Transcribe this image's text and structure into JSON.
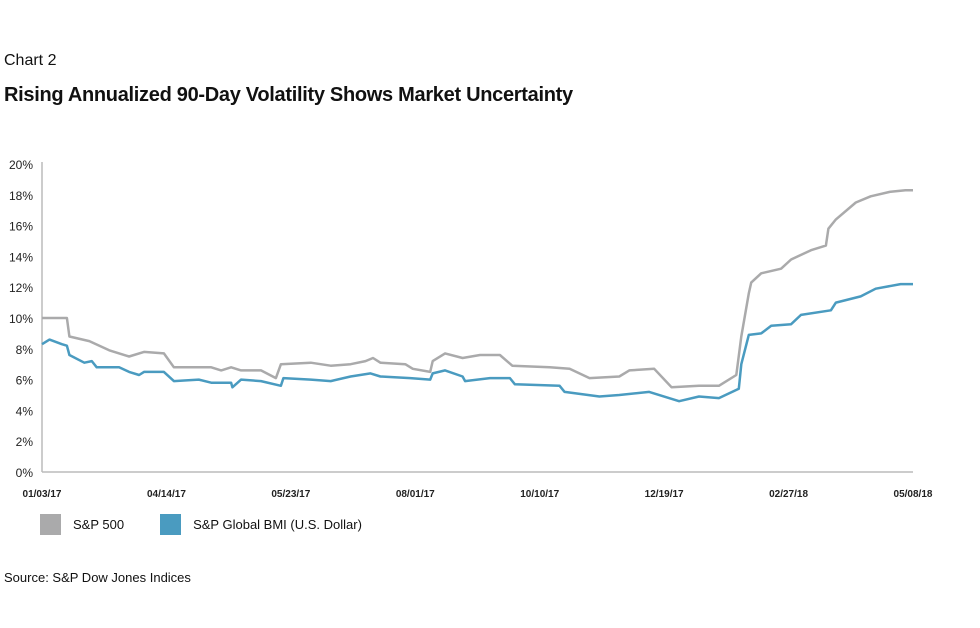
{
  "header": {
    "chart_number": "Chart 2",
    "title": "Rising Annualized 90-Day Volatility Shows Market Uncertainty"
  },
  "source": "Source: S&P Dow Jones Indices",
  "chart_data": {
    "type": "line",
    "title": "Rising Annualized 90-Day Volatility Shows Market Uncertainty",
    "xlabel": "",
    "ylabel": "",
    "ylim": [
      0,
      20
    ],
    "yticks": [
      0,
      2,
      4,
      6,
      8,
      10,
      12,
      14,
      16,
      18,
      20
    ],
    "ytick_labels": [
      "0%",
      "2%",
      "4%",
      "6%",
      "8%",
      "10%",
      "12%",
      "14%",
      "16%",
      "18%",
      "20%"
    ],
    "xlim": [
      0,
      350
    ],
    "x_unit": "trading day index from 01/03/17",
    "xticks": [
      0,
      50,
      100,
      150,
      200,
      250,
      300,
      350
    ],
    "xtick_labels": [
      "01/03/17",
      "04/14/17",
      "05/23/17",
      "08/01/17",
      "10/10/17",
      "12/19/17",
      "02/27/18",
      "05/08/18"
    ],
    "grid": false,
    "legend_placement": "bottom-left",
    "series": [
      {
        "name": "S&P 500",
        "color": "#aaaaab",
        "points": [
          [
            0,
            10.0
          ],
          [
            10,
            10.0
          ],
          [
            11,
            8.8
          ],
          [
            19,
            8.5
          ],
          [
            27,
            7.9
          ],
          [
            35,
            7.5
          ],
          [
            41,
            7.8
          ],
          [
            49,
            7.7
          ],
          [
            53,
            6.8
          ],
          [
            68,
            6.8
          ],
          [
            72,
            6.6
          ],
          [
            76,
            6.8
          ],
          [
            80,
            6.6
          ],
          [
            88,
            6.6
          ],
          [
            94,
            6.1
          ],
          [
            96,
            7.0
          ],
          [
            108,
            7.1
          ],
          [
            116,
            6.9
          ],
          [
            124,
            7.0
          ],
          [
            130,
            7.2
          ],
          [
            133,
            7.4
          ],
          [
            136,
            7.1
          ],
          [
            146,
            7.0
          ],
          [
            149,
            6.7
          ],
          [
            156,
            6.5
          ],
          [
            157,
            7.2
          ],
          [
            162,
            7.7
          ],
          [
            169,
            7.4
          ],
          [
            176,
            7.6
          ],
          [
            184,
            7.6
          ],
          [
            189,
            6.9
          ],
          [
            204,
            6.8
          ],
          [
            212,
            6.7
          ],
          [
            220,
            6.1
          ],
          [
            232,
            6.2
          ],
          [
            236,
            6.6
          ],
          [
            246,
            6.7
          ],
          [
            253,
            5.5
          ],
          [
            264,
            5.6
          ],
          [
            272,
            5.6
          ],
          [
            279,
            6.3
          ],
          [
            281,
            8.8
          ],
          [
            284,
            11.6
          ],
          [
            285,
            12.3
          ],
          [
            289,
            12.9
          ],
          [
            297,
            13.2
          ],
          [
            301,
            13.8
          ],
          [
            309,
            14.4
          ],
          [
            315,
            14.7
          ],
          [
            316,
            15.8
          ],
          [
            319,
            16.4
          ],
          [
            327,
            17.5
          ],
          [
            333,
            17.9
          ],
          [
            341,
            18.2
          ],
          [
            347,
            18.3
          ],
          [
            350,
            18.3
          ]
        ]
      },
      {
        "name": "S&P Global BMI (U.S. Dollar)",
        "color": "#4a9bc0",
        "points": [
          [
            0,
            8.3
          ],
          [
            3,
            8.6
          ],
          [
            8,
            8.3
          ],
          [
            10,
            8.2
          ],
          [
            11,
            7.6
          ],
          [
            17,
            7.1
          ],
          [
            20,
            7.2
          ],
          [
            22,
            6.8
          ],
          [
            31,
            6.8
          ],
          [
            35,
            6.5
          ],
          [
            39,
            6.3
          ],
          [
            41,
            6.5
          ],
          [
            49,
            6.5
          ],
          [
            53,
            5.9
          ],
          [
            63,
            6.0
          ],
          [
            68,
            5.8
          ],
          [
            76,
            5.8
          ],
          [
            76.5,
            5.5
          ],
          [
            80,
            6.0
          ],
          [
            88,
            5.9
          ],
          [
            96,
            5.6
          ],
          [
            97,
            6.1
          ],
          [
            108,
            6.0
          ],
          [
            116,
            5.9
          ],
          [
            124,
            6.2
          ],
          [
            132,
            6.4
          ],
          [
            136,
            6.2
          ],
          [
            148,
            6.1
          ],
          [
            156,
            6.0
          ],
          [
            157,
            6.4
          ],
          [
            162,
            6.6
          ],
          [
            169,
            6.2
          ],
          [
            170,
            5.9
          ],
          [
            180,
            6.1
          ],
          [
            188,
            6.1
          ],
          [
            190,
            5.7
          ],
          [
            208,
            5.6
          ],
          [
            210,
            5.2
          ],
          [
            224,
            4.9
          ],
          [
            232,
            5.0
          ],
          [
            244,
            5.2
          ],
          [
            256,
            4.6
          ],
          [
            264,
            4.9
          ],
          [
            272,
            4.8
          ],
          [
            280,
            5.4
          ],
          [
            281,
            7.0
          ],
          [
            284,
            8.9
          ],
          [
            289,
            9.0
          ],
          [
            293,
            9.5
          ],
          [
            301,
            9.6
          ],
          [
            305,
            10.2
          ],
          [
            317,
            10.5
          ],
          [
            319,
            11.0
          ],
          [
            329,
            11.4
          ],
          [
            335,
            11.9
          ],
          [
            345,
            12.2
          ],
          [
            350,
            12.2
          ]
        ]
      }
    ]
  }
}
